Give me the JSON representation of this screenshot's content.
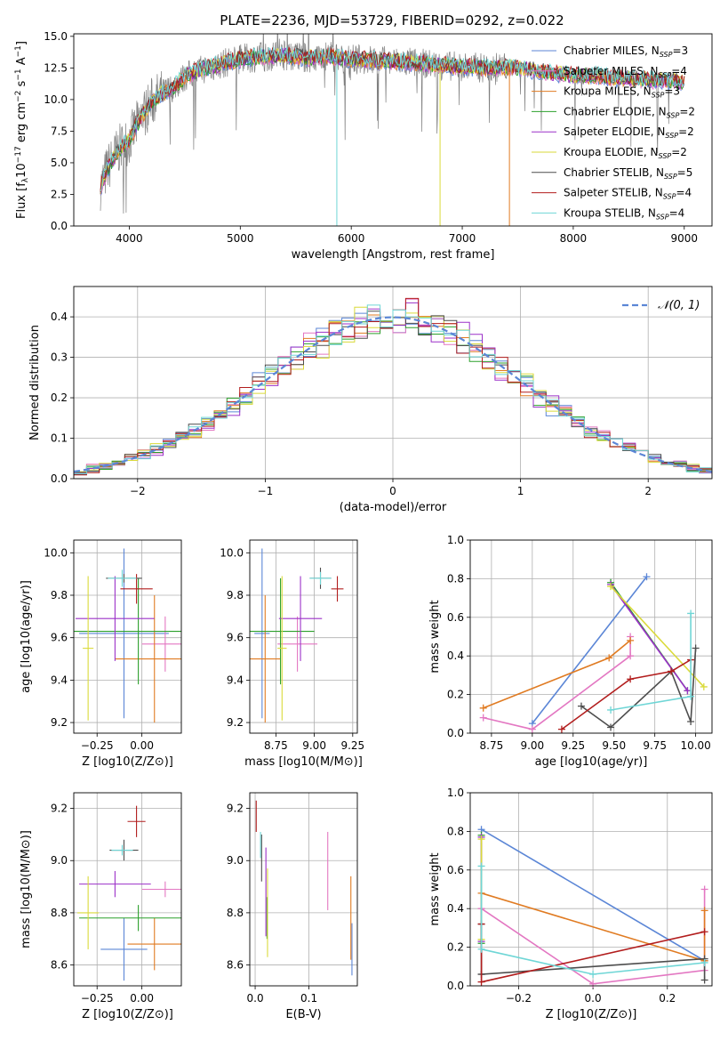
{
  "figure_title": "PLATE=2236, MJD=53729, FIBERID=0292, z=0.022",
  "colors": {
    "Chabrier MILES": "#5b86d6",
    "Salpeter MILES": "#e377c2",
    "Kroupa MILES": "#e07b22",
    "Chabrier ELODIE": "#2ca02c",
    "Salpeter ELODIE": "#9b30c8",
    "Kroupa ELODIE": "#dada3a",
    "Chabrier STELIB": "#4d4d4d",
    "Salpeter STELIB": "#b21d1d",
    "Kroupa STELIB": "#6fd6d6"
  },
  "chart_data": [
    {
      "type": "line",
      "panel": "spectrum",
      "xlabel": "wavelength [Angstrom, rest frame]",
      "ylabel": "Flux [f_λ 10^-17 erg cm^-2 s^-1 A^-1]",
      "xlim": [
        3500,
        9250
      ],
      "ylim": [
        0,
        15.2
      ],
      "xticks": [
        4000,
        5000,
        6000,
        7000,
        8000,
        9000
      ],
      "yticks": [
        "0.0",
        "2.5",
        "5.0",
        "7.5",
        "10.0",
        "12.5",
        "15.0"
      ],
      "legend_position": "top-right",
      "series": [
        {
          "name": "Chabrier MILES, NSSP=3"
        },
        {
          "name": "Salpeter MILES, NSSP=4"
        },
        {
          "name": "Kroupa MILES, NSSP=3"
        },
        {
          "name": "Chabrier ELODIE, NSSP=2"
        },
        {
          "name": "Salpeter ELODIE, NSSP=2"
        },
        {
          "name": "Kroupa ELODIE, NSSP=2"
        },
        {
          "name": "Chabrier STELIB, NSSP=5"
        },
        {
          "name": "Salpeter STELIB, NSSP=4"
        },
        {
          "name": "Kroupa STELIB, NSSP=4"
        }
      ],
      "data_continuum": {
        "x": [
          3750,
          3800,
          3900,
          4000,
          4100,
          4200,
          4300,
          4400,
          4500,
          4600,
          4700,
          4800,
          4900,
          5000,
          5200,
          5400,
          5600,
          5800,
          6000,
          6200,
          6400,
          6600,
          6800,
          7000,
          7200,
          7400,
          7600,
          7800,
          8000,
          8200,
          8400,
          8600,
          8800,
          9000
        ],
        "y": [
          3.2,
          4.5,
          6.0,
          6.8,
          8.5,
          9.8,
          10.5,
          11.0,
          11.8,
          12.2,
          12.5,
          12.7,
          13.0,
          13.2,
          13.4,
          13.5,
          13.3,
          13.4,
          13.2,
          13.1,
          13.0,
          12.9,
          12.7,
          12.6,
          12.5,
          12.6,
          12.4,
          12.1,
          11.9,
          11.9,
          11.7,
          11.6,
          11.5,
          11.4
        ]
      }
    },
    {
      "type": "line",
      "panel": "residuals",
      "xlabel": "(data-model)/error",
      "ylabel": "Normed distribution",
      "xlim": [
        -2.5,
        2.5
      ],
      "ylim": [
        0,
        0.475
      ],
      "xticks": [
        "−2",
        "−1",
        "0",
        "1",
        "2"
      ],
      "yticks": [
        "0.0",
        "0.1",
        "0.2",
        "0.3",
        "0.4"
      ],
      "legend": [
        "𝒩(0, 1)"
      ],
      "legend_position": "top-right",
      "gaussian": {
        "mu": 0,
        "sigma": 1
      }
    },
    {
      "type": "scatter",
      "panel": "age_vs_Z",
      "xlabel": "Z [log10(Z/Z⊙)]",
      "ylabel": "age [log10(age/yr)]",
      "xlim": [
        -0.38,
        0.22
      ],
      "ylim": [
        9.15,
        10.06
      ],
      "xticks": [
        "−0.25",
        "0.00"
      ],
      "yticks": [
        "9.2",
        "9.4",
        "9.6",
        "9.8",
        "10.0"
      ],
      "points": [
        {
          "model": "Chabrier MILES",
          "x": -0.1,
          "xerr": 0.25,
          "y": 9.62,
          "yerr": 0.4
        },
        {
          "model": "Salpeter MILES",
          "x": 0.13,
          "xerr": 0.13,
          "y": 9.57,
          "yerr": 0.13
        },
        {
          "model": "Kroupa MILES",
          "x": 0.07,
          "xerr": 0.22,
          "y": 9.5,
          "yerr": 0.3
        },
        {
          "model": "Chabrier ELODIE",
          "x": -0.02,
          "xerr": 0.36,
          "y": 9.63,
          "yerr": 0.25
        },
        {
          "model": "Salpeter ELODIE",
          "x": -0.15,
          "xerr": 0.22,
          "y": 9.69,
          "yerr": 0.2
        },
        {
          "model": "Kroupa ELODIE",
          "x": -0.3,
          "xerr": 0.03,
          "y": 9.55,
          "yerr": 0.34
        },
        {
          "model": "Chabrier STELIB",
          "x": -0.1,
          "xerr": 0.1,
          "y": 9.88,
          "yerr": 0.02
        },
        {
          "model": "Salpeter STELIB",
          "x": -0.03,
          "xerr": 0.09,
          "y": 9.83,
          "yerr": 0.07
        },
        {
          "model": "Kroupa STELIB",
          "x": -0.11,
          "xerr": 0.08,
          "y": 9.88,
          "yerr": 0.04
        }
      ]
    },
    {
      "type": "scatter",
      "panel": "age_vs_mass",
      "xlabel": "mass [log10(M/M⊙)]",
      "xlim": [
        8.58,
        9.28
      ],
      "ylim": [
        9.15,
        10.06
      ],
      "xticks": [
        "8.75",
        "9.00",
        "9.25"
      ],
      "yticks": [
        "9.2",
        "9.4",
        "9.6",
        "9.8",
        "10.0"
      ],
      "points": [
        {
          "model": "Chabrier MILES",
          "x": 8.66,
          "xerr": 0.05,
          "y": 9.62,
          "yerr": 0.4
        },
        {
          "model": "Salpeter MILES",
          "x": 8.89,
          "xerr": 0.13,
          "y": 9.57,
          "yerr": 0.13
        },
        {
          "model": "Kroupa MILES",
          "x": 8.68,
          "xerr": 0.1,
          "y": 9.5,
          "yerr": 0.3
        },
        {
          "model": "Chabrier ELODIE",
          "x": 8.78,
          "xerr": 0.22,
          "y": 9.63,
          "yerr": 0.25
        },
        {
          "model": "Salpeter ELODIE",
          "x": 8.91,
          "xerr": 0.14,
          "y": 9.69,
          "yerr": 0.2
        },
        {
          "model": "Kroupa ELODIE",
          "x": 8.79,
          "xerr": 0.03,
          "y": 9.55,
          "yerr": 0.34
        },
        {
          "model": "Chabrier STELIB",
          "x": 9.04,
          "xerr": 0.07,
          "y": 9.88,
          "yerr": 0.05
        },
        {
          "model": "Salpeter STELIB",
          "x": 9.15,
          "xerr": 0.04,
          "y": 9.83,
          "yerr": 0.06
        },
        {
          "model": "Kroupa STELIB",
          "x": 9.04,
          "xerr": 0.07,
          "y": 9.88,
          "yerr": 0.03
        }
      ]
    },
    {
      "type": "line",
      "panel": "weight_vs_age",
      "xlabel": "age [log10(age/yr)]",
      "ylabel": "mass weight",
      "xlim": [
        8.62,
        10.1
      ],
      "ylim": [
        0,
        1.0
      ],
      "xticks": [
        "8.75",
        "9.00",
        "9.25",
        "9.50",
        "9.75",
        "10.00"
      ],
      "yticks": [
        "0.0",
        "0.2",
        "0.4",
        "0.6",
        "0.8",
        "1.0"
      ],
      "series": [
        {
          "model": "Chabrier MILES",
          "x": [
            9.0,
            9.7
          ],
          "y": [
            0.05,
            0.81
          ]
        },
        {
          "model": "Salpeter MILES",
          "x": [
            8.7,
            9.0,
            9.6,
            9.6
          ],
          "y": [
            0.08,
            0.02,
            0.4,
            0.5
          ]
        },
        {
          "model": "Kroupa MILES",
          "x": [
            8.7,
            9.47,
            9.6
          ],
          "y": [
            0.13,
            0.39,
            0.48
          ]
        },
        {
          "model": "Chabrier ELODIE",
          "x": [
            9.48,
            9.95
          ],
          "y": [
            0.78,
            0.22
          ]
        },
        {
          "model": "Salpeter ELODIE",
          "x": [
            9.48,
            9.95
          ],
          "y": [
            0.77,
            0.22
          ]
        },
        {
          "model": "Kroupa ELODIE",
          "x": [
            9.48,
            10.05
          ],
          "y": [
            0.76,
            0.24
          ]
        },
        {
          "model": "Chabrier STELIB",
          "x": [
            9.3,
            9.48,
            9.85,
            9.97,
            10.0
          ],
          "y": [
            0.14,
            0.03,
            0.32,
            0.06,
            0.44
          ]
        },
        {
          "model": "Salpeter STELIB",
          "x": [
            9.18,
            9.6,
            9.85,
            9.97
          ],
          "y": [
            0.02,
            0.28,
            0.32,
            0.38
          ]
        },
        {
          "model": "Kroupa STELIB",
          "x": [
            9.48,
            9.97,
            9.97
          ],
          "y": [
            0.12,
            0.19,
            0.62
          ]
        }
      ]
    },
    {
      "type": "scatter",
      "panel": "mass_vs_Z",
      "xlabel": "Z [log10(Z/Z⊙)]",
      "ylabel": "mass [log10(M/M⊙)]",
      "xlim": [
        -0.38,
        0.22
      ],
      "ylim": [
        8.52,
        9.26
      ],
      "xticks": [
        "−0.25",
        "0.00"
      ],
      "yticks": [
        "8.6",
        "8.8",
        "9.0",
        "9.2"
      ],
      "points": [
        {
          "model": "Chabrier MILES",
          "x": -0.1,
          "xerr": 0.13,
          "y": 8.66,
          "yerr": 0.12
        },
        {
          "model": "Salpeter MILES",
          "x": 0.13,
          "xerr": 0.13,
          "y": 8.89,
          "yerr": 0.03
        },
        {
          "model": "Kroupa MILES",
          "x": 0.07,
          "xerr": 0.15,
          "y": 8.68,
          "yerr": 0.1
        },
        {
          "model": "Chabrier ELODIE",
          "x": -0.02,
          "xerr": 0.33,
          "y": 8.78,
          "yerr": 0.05
        },
        {
          "model": "Salpeter ELODIE",
          "x": -0.15,
          "xerr": 0.2,
          "y": 8.91,
          "yerr": 0.05
        },
        {
          "model": "Kroupa ELODIE",
          "x": -0.3,
          "xerr": 0.06,
          "y": 8.8,
          "yerr": 0.14
        },
        {
          "model": "Chabrier STELIB",
          "x": -0.1,
          "xerr": 0.08,
          "y": 9.04,
          "yerr": 0.04
        },
        {
          "model": "Salpeter STELIB",
          "x": -0.03,
          "xerr": 0.05,
          "y": 9.15,
          "yerr": 0.06
        },
        {
          "model": "Kroupa STELIB",
          "x": -0.11,
          "xerr": 0.06,
          "y": 9.04,
          "yerr": 0.02
        }
      ]
    },
    {
      "type": "scatter",
      "panel": "mass_vs_EBV",
      "xlabel": "E(B-V)",
      "xlim": [
        -0.01,
        0.19
      ],
      "ylim": [
        8.52,
        9.26
      ],
      "xticks": [
        "0.0",
        "0.1"
      ],
      "yticks": [
        "8.6",
        "8.8",
        "9.0",
        "9.2"
      ],
      "points": [
        {
          "model": "Chabrier MILES",
          "x": 0.18,
          "y": 8.66,
          "yerr": 0.1
        },
        {
          "model": "Salpeter MILES",
          "x": 0.135,
          "y": 8.96,
          "yerr": 0.15
        },
        {
          "model": "Kroupa MILES",
          "x": 0.178,
          "y": 8.78,
          "yerr": 0.16
        },
        {
          "model": "Chabrier ELODIE",
          "x": 0.022,
          "y": 8.78,
          "yerr": 0.08
        },
        {
          "model": "Salpeter ELODIE",
          "x": 0.02,
          "y": 8.88,
          "yerr": 0.17
        },
        {
          "model": "Kroupa ELODIE",
          "x": 0.023,
          "y": 8.8,
          "yerr": 0.17
        },
        {
          "model": "Chabrier STELIB",
          "x": 0.012,
          "y": 9.01,
          "yerr": 0.09
        },
        {
          "model": "Salpeter STELIB",
          "x": 0.002,
          "y": 9.17,
          "yerr": 0.06
        },
        {
          "model": "Kroupa STELIB",
          "x": 0.01,
          "y": 9.06,
          "yerr": 0.05
        }
      ]
    },
    {
      "type": "line",
      "panel": "weight_vs_Z",
      "xlabel": "Z [log10(Z/Z⊙)]",
      "ylabel": "mass weight",
      "xlim": [
        -0.33,
        0.32
      ],
      "ylim": [
        0,
        1.0
      ],
      "xticks": [
        "−0.2",
        "0.0",
        "0.2"
      ],
      "yticks": [
        "0.0",
        "0.2",
        "0.4",
        "0.6",
        "0.8",
        "1.0"
      ],
      "series": [
        {
          "model": "Chabrier MILES",
          "x": [
            -0.3,
            0.3
          ],
          "y": [
            0.81,
            0.13
          ]
        },
        {
          "model": "Salpeter MILES",
          "x": [
            -0.3,
            0.0,
            0.3,
            0.3
          ],
          "y": [
            0.4,
            0.01,
            0.08,
            0.5
          ]
        },
        {
          "model": "Kroupa MILES",
          "x": [
            -0.3,
            0.3,
            0.3
          ],
          "y": [
            0.48,
            0.13,
            0.39
          ]
        },
        {
          "model": "Chabrier ELODIE",
          "x": [
            -0.3,
            -0.3
          ],
          "y": [
            0.22,
            0.78
          ]
        },
        {
          "model": "Salpeter ELODIE",
          "x": [
            -0.3,
            -0.3
          ],
          "y": [
            0.23,
            0.77
          ]
        },
        {
          "model": "Kroupa ELODIE",
          "x": [
            -0.3,
            -0.3
          ],
          "y": [
            0.24,
            0.76
          ]
        },
        {
          "model": "Chabrier STELIB",
          "x": [
            -0.3,
            -0.3,
            -0.3,
            0.3,
            0.3
          ],
          "y": [
            0.32,
            0.06,
            0.06,
            0.14,
            0.03
          ]
        },
        {
          "model": "Salpeter STELIB",
          "x": [
            -0.3,
            -0.3,
            0.3
          ],
          "y": [
            0.32,
            0.02,
            0.28
          ]
        },
        {
          "model": "Kroupa STELIB",
          "x": [
            -0.3,
            -0.3,
            0.0,
            0.3
          ],
          "y": [
            0.62,
            0.19,
            0.06,
            0.12
          ]
        }
      ]
    }
  ]
}
